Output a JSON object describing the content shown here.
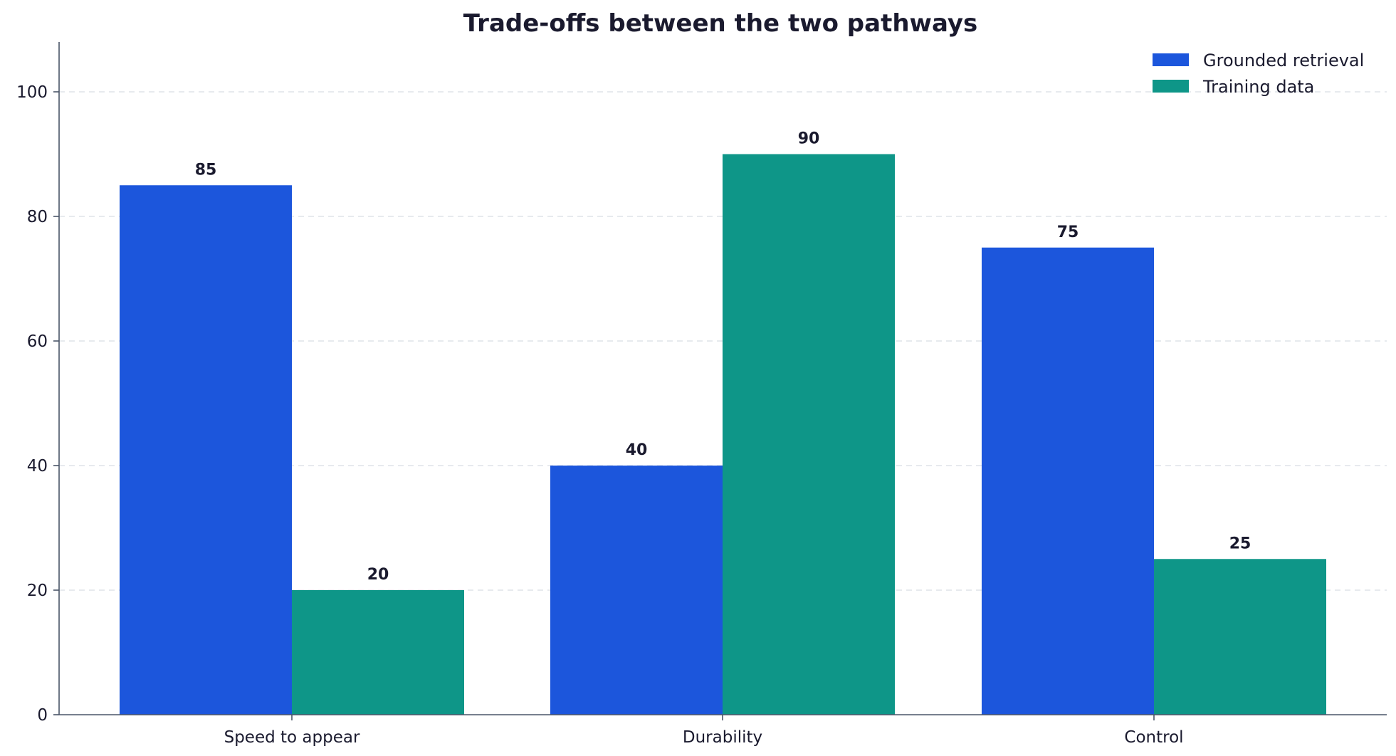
{
  "chart_data": {
    "type": "bar",
    "title": "Trade-offs between the two pathways",
    "xlabel": "",
    "ylabel": "",
    "categories": [
      "Speed to appear",
      "Durability",
      "Control"
    ],
    "series": [
      {
        "name": "Grounded retrieval",
        "values": [
          85,
          40,
          75
        ],
        "color": "#1c56dc"
      },
      {
        "name": "Training data",
        "values": [
          20,
          90,
          25
        ],
        "color": "#0e9688"
      }
    ],
    "ylim": [
      0,
      108
    ],
    "yticks": [
      0,
      20,
      40,
      60,
      80,
      100
    ],
    "grid": true,
    "legend_position": "top-right",
    "data_labels": true
  }
}
